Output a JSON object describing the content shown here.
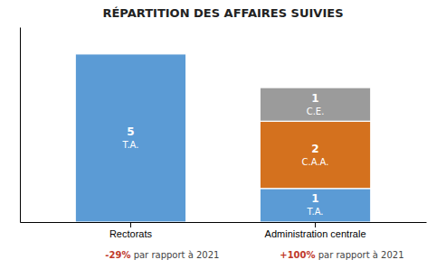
{
  "chart_data": {
    "type": "bar",
    "stacked": true,
    "title": "RÉPARTITION DES AFFAIRES SUIVIES",
    "categories": [
      "Rectorats",
      "Administration centrale"
    ],
    "series": [
      {
        "name": "T.A.",
        "color": "#5b9bd5",
        "values": [
          5,
          1
        ]
      },
      {
        "name": "C.A.A.",
        "color": "#d4711e",
        "values": [
          null,
          2
        ]
      },
      {
        "name": "C.E.",
        "color": "#9b9b9b",
        "values": [
          null,
          1
        ]
      }
    ],
    "ylim": [
      0,
      5.8
    ],
    "tick_labels": "x",
    "data_labels": true,
    "annotations": [
      [
        {
          "text": "-29%",
          "color": "#c0392b"
        },
        {
          "text": " par rapport à 2021"
        }
      ],
      [
        {
          "text": "+100%",
          "color": "#c0392b"
        },
        {
          "text": " par rapport à 2021"
        }
      ]
    ]
  }
}
